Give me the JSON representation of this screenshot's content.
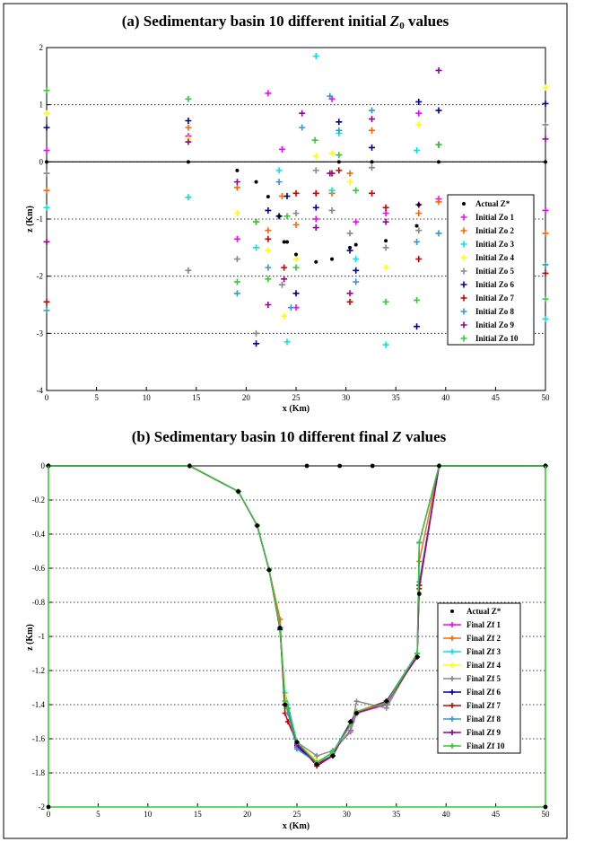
{
  "chart_data": [
    {
      "type": "scatter",
      "title_prefix": "(a) Sedimentary basin 10 different initial ",
      "title_symbol": "Z",
      "title_subscript": "0",
      "title_suffix": " values",
      "xlabel": "x (Km)",
      "ylabel": "z (Km)",
      "xlim": [
        0,
        50
      ],
      "ylim": [
        -4,
        2
      ],
      "xticks": [
        0,
        5,
        10,
        15,
        20,
        25,
        30,
        35,
        40,
        45,
        50
      ],
      "yticks": [
        -4,
        -3,
        -2,
        -1,
        0,
        1,
        2
      ],
      "grid": "horizontal dotted",
      "zero_line": true,
      "legend_position": "lower-right",
      "actual": {
        "name": "Actual Z*",
        "color": "#000000",
        "x": [
          0,
          14.2,
          19.1,
          21.0,
          22.2,
          23.3,
          23.8,
          24.1,
          25.0,
          27.0,
          28.6,
          29.3,
          30.4,
          31.0,
          32.6,
          34.0,
          37.1,
          37.3,
          39.3,
          50
        ],
        "y": [
          0,
          0,
          -0.15,
          -0.35,
          -0.61,
          -0.95,
          -1.4,
          -1.4,
          -1.62,
          -1.75,
          -1.7,
          0,
          -1.5,
          -1.45,
          0,
          -1.38,
          -1.12,
          -0.75,
          0,
          0
        ]
      },
      "series": [
        {
          "name": "Initial Zo 1",
          "color": "#ff00ff",
          "x": [
            0,
            14.2,
            19.1,
            22.2,
            23.6,
            25.0,
            27.0,
            28.6,
            31.0,
            34.0,
            37.3,
            39.3,
            50
          ],
          "y": [
            0.2,
            0.45,
            -1.35,
            1.2,
            0.22,
            -2.55,
            -1.0,
            1.1,
            -1.05,
            -0.9,
            0.85,
            -0.65,
            -0.85
          ]
        },
        {
          "name": "Initial Zo 2",
          "color": "#ff6600",
          "x": [
            0,
            14.2,
            19.1,
            22.2,
            23.6,
            25.0,
            27.0,
            28.6,
            30.4,
            32.6,
            37.3,
            39.3,
            50
          ],
          "y": [
            -0.5,
            0.6,
            -0.45,
            -1.2,
            -0.6,
            -1.1,
            -0.55,
            -0.55,
            -0.2,
            0.55,
            -0.9,
            -0.7,
            -1.25
          ]
        },
        {
          "name": "Initial Zo 3",
          "color": "#00e5e5",
          "x": [
            0,
            14.2,
            21.0,
            23.3,
            24.1,
            27.0,
            28.6,
            29.3,
            31.0,
            34.0,
            37.1,
            50
          ],
          "y": [
            -0.8,
            -0.62,
            -1.5,
            -0.15,
            -3.15,
            1.85,
            -0.5,
            0.5,
            -1.7,
            -3.2,
            0.2,
            -2.75
          ]
        },
        {
          "name": "Initial Zo 4",
          "color": "#ffff00",
          "x": [
            0,
            14.2,
            19.1,
            22.2,
            23.8,
            25.0,
            27.0,
            28.6,
            30.4,
            34.0,
            37.3,
            50
          ],
          "y": [
            0.85,
            0.4,
            -0.9,
            -1.55,
            -2.7,
            -1.7,
            0.1,
            0.15,
            -0.35,
            -1.85,
            0.65,
            1.3
          ]
        },
        {
          "name": "Initial Zo 5",
          "color": "#888888",
          "x": [
            0,
            14.2,
            19.1,
            21.0,
            23.6,
            25.0,
            27.0,
            28.6,
            30.4,
            32.6,
            34.0,
            37.3,
            50
          ],
          "y": [
            -0.2,
            -1.9,
            -1.7,
            -3.0,
            -2.15,
            -0.9,
            -0.15,
            -0.85,
            -1.25,
            -0.1,
            -1.5,
            -1.2,
            0.65
          ]
        },
        {
          "name": "Initial Zo 6",
          "color": "#000099",
          "x": [
            0,
            14.2,
            21.0,
            22.2,
            23.3,
            24.1,
            25.0,
            27.0,
            29.3,
            30.4,
            31.0,
            32.6,
            37.1,
            37.3,
            39.3,
            50
          ],
          "y": [
            0.6,
            0.72,
            -3.18,
            -0.85,
            -0.95,
            -0.6,
            -2.3,
            -0.8,
            0.7,
            -1.55,
            -1.9,
            0.25,
            -2.88,
            1.05,
            0.9,
            1.02
          ]
        },
        {
          "name": "Initial Zo 7",
          "color": "#cc0000",
          "x": [
            0,
            21.0,
            22.2,
            23.8,
            25.0,
            27.0,
            28.6,
            29.3,
            30.4,
            32.6,
            34.0,
            37.3,
            39.3,
            50
          ],
          "y": [
            -2.45,
            -1.05,
            -1.35,
            -1.85,
            -0.55,
            -0.55,
            -0.2,
            -0.15,
            -2.45,
            -0.55,
            -0.8,
            -1.7,
            0.3,
            -1.95
          ]
        },
        {
          "name": "Initial Zo 8",
          "color": "#3399cc",
          "x": [
            0,
            19.1,
            22.2,
            23.3,
            24.5,
            25.6,
            28.4,
            29.3,
            31.0,
            32.6,
            37.1,
            39.3,
            50
          ],
          "y": [
            -2.6,
            -2.3,
            -1.85,
            -0.35,
            -2.55,
            0.6,
            1.15,
            0.55,
            -2.1,
            0.9,
            -1.4,
            -1.25,
            -1.8
          ]
        },
        {
          "name": "Initial Zo 9",
          "color": "#990099",
          "x": [
            0,
            14.2,
            19.1,
            22.2,
            23.8,
            25.6,
            27.0,
            28.4,
            30.4,
            32.6,
            34.0,
            37.3,
            39.3,
            50
          ],
          "y": [
            -1.4,
            0.35,
            -0.35,
            -2.5,
            -2.05,
            0.85,
            -1.15,
            -0.2,
            -2.3,
            0.75,
            -1.05,
            -0.75,
            1.6,
            0.4
          ]
        },
        {
          "name": "Initial Zo 10",
          "color": "#33cc33",
          "x": [
            0,
            14.2,
            19.1,
            21.0,
            22.2,
            24.1,
            25.0,
            26.9,
            29.3,
            31.0,
            34.0,
            37.1,
            39.3,
            50
          ],
          "y": [
            1.25,
            1.1,
            -2.1,
            -1.05,
            -2.05,
            -0.95,
            -1.85,
            0.38,
            0.12,
            -0.5,
            -2.45,
            -2.42,
            0.3,
            -2.4
          ]
        }
      ]
    },
    {
      "type": "line",
      "title_prefix": "(b) Sedimentary basin 10 different final ",
      "title_symbol": "Z",
      "title_suffix": " values",
      "xlabel": "x (Km)",
      "ylabel": "z (Km)",
      "xlim": [
        0,
        50
      ],
      "ylim": [
        -2,
        0
      ],
      "xticks": [
        0,
        5,
        10,
        15,
        20,
        25,
        30,
        35,
        40,
        45,
        50
      ],
      "yticks": [
        -2,
        -1.8,
        -1.6,
        -1.4,
        -1.2,
        -1,
        -0.8,
        -0.6,
        -0.4,
        -0.2,
        0
      ],
      "grid": "horizontal dotted",
      "legend_position": "lower-right",
      "x": [
        0,
        14.2,
        19.1,
        21.0,
        22.2,
        23.3,
        23.8,
        24.1,
        25.0,
        27.0,
        28.6,
        30.4,
        31.0,
        34.0,
        37.1,
        37.3,
        39.3,
        50
      ],
      "actual": {
        "name": "Actual Z*",
        "color": "#000000",
        "x": [
          0,
          14.2,
          19.1,
          21.0,
          22.2,
          23.3,
          23.8,
          25.0,
          26.0,
          27.0,
          28.6,
          29.3,
          30.4,
          31.0,
          32.6,
          34.0,
          37.1,
          37.3,
          39.3,
          50
        ],
        "y": [
          0,
          0,
          -0.15,
          -0.35,
          -0.61,
          -0.95,
          -1.4,
          -1.62,
          0,
          -1.75,
          -1.7,
          0,
          -1.5,
          -1.45,
          0,
          -1.38,
          -1.12,
          -0.75,
          0,
          0
        ]
      },
      "series": [
        {
          "name": "Final Zf 1",
          "color": "#ff00ff",
          "values": [
            0,
            0,
            -0.15,
            -0.35,
            -0.61,
            -0.95,
            -1.38,
            -1.45,
            -1.65,
            -1.74,
            -1.68,
            -1.55,
            -1.45,
            -1.4,
            -1.1,
            -0.7,
            0,
            0
          ]
        },
        {
          "name": "Final Zf 2",
          "color": "#ff6600",
          "values": [
            0,
            0,
            -0.15,
            -0.35,
            -0.61,
            -0.9,
            -1.45,
            -1.5,
            -1.63,
            -1.74,
            -1.7,
            -1.5,
            -1.44,
            -1.38,
            -1.12,
            -0.56,
            0,
            0
          ]
        },
        {
          "name": "Final Zf 3",
          "color": "#00e5e5",
          "values": [
            0,
            0,
            -0.15,
            -0.35,
            -0.61,
            -0.95,
            -1.33,
            -1.4,
            -1.62,
            -1.75,
            -1.69,
            -1.52,
            -1.45,
            -1.38,
            -1.1,
            -0.68,
            0,
            0
          ]
        },
        {
          "name": "Final Zf 4",
          "color": "#ffff00",
          "values": [
            0,
            0,
            -0.15,
            -0.35,
            -0.61,
            -0.95,
            -1.35,
            -1.42,
            -1.62,
            -1.73,
            -1.69,
            -1.52,
            -1.44,
            -1.39,
            -1.1,
            -0.7,
            0,
            0
          ]
        },
        {
          "name": "Final Zf 5",
          "color": "#888888",
          "values": [
            0,
            0,
            -0.15,
            -0.35,
            -0.61,
            -0.95,
            -1.38,
            -1.42,
            -1.62,
            -1.7,
            -1.67,
            -1.56,
            -1.38,
            -1.42,
            -1.1,
            -0.7,
            0,
            0
          ]
        },
        {
          "name": "Final Zf 6",
          "color": "#000099",
          "values": [
            0,
            0,
            -0.15,
            -0.35,
            -0.61,
            -0.96,
            -1.4,
            -1.42,
            -1.64,
            -1.75,
            -1.7,
            -1.5,
            -1.45,
            -1.38,
            -1.12,
            -0.45,
            0,
            0
          ]
        },
        {
          "name": "Final Zf 7",
          "color": "#cc0000",
          "values": [
            0,
            0,
            -0.15,
            -0.35,
            -0.61,
            -0.95,
            -1.45,
            -1.5,
            -1.62,
            -1.76,
            -1.7,
            -1.5,
            -1.45,
            -1.39,
            -1.12,
            -0.72,
            0,
            0
          ]
        },
        {
          "name": "Final Zf 8",
          "color": "#3399cc",
          "values": [
            0,
            0,
            -0.15,
            -0.35,
            -0.61,
            -0.95,
            -1.38,
            -1.45,
            -1.66,
            -1.74,
            -1.68,
            -1.5,
            -1.45,
            -1.38,
            -1.1,
            -0.7,
            0,
            0
          ]
        },
        {
          "name": "Final Zf 9",
          "color": "#990099",
          "values": [
            0,
            0,
            -0.15,
            -0.35,
            -0.61,
            -0.95,
            -1.4,
            -1.42,
            -1.63,
            -1.75,
            -1.7,
            -1.5,
            -1.45,
            -1.38,
            -1.12,
            -0.7,
            0,
            0
          ]
        },
        {
          "name": "Final Zf 10",
          "color": "#33cc33",
          "values": [
            0,
            0,
            -0.15,
            -0.35,
            -0.61,
            -0.95,
            -1.38,
            -1.42,
            -1.62,
            -1.74,
            -1.68,
            -1.52,
            -1.44,
            -1.39,
            -1.1,
            -0.45,
            0,
            0
          ]
        }
      ]
    }
  ]
}
